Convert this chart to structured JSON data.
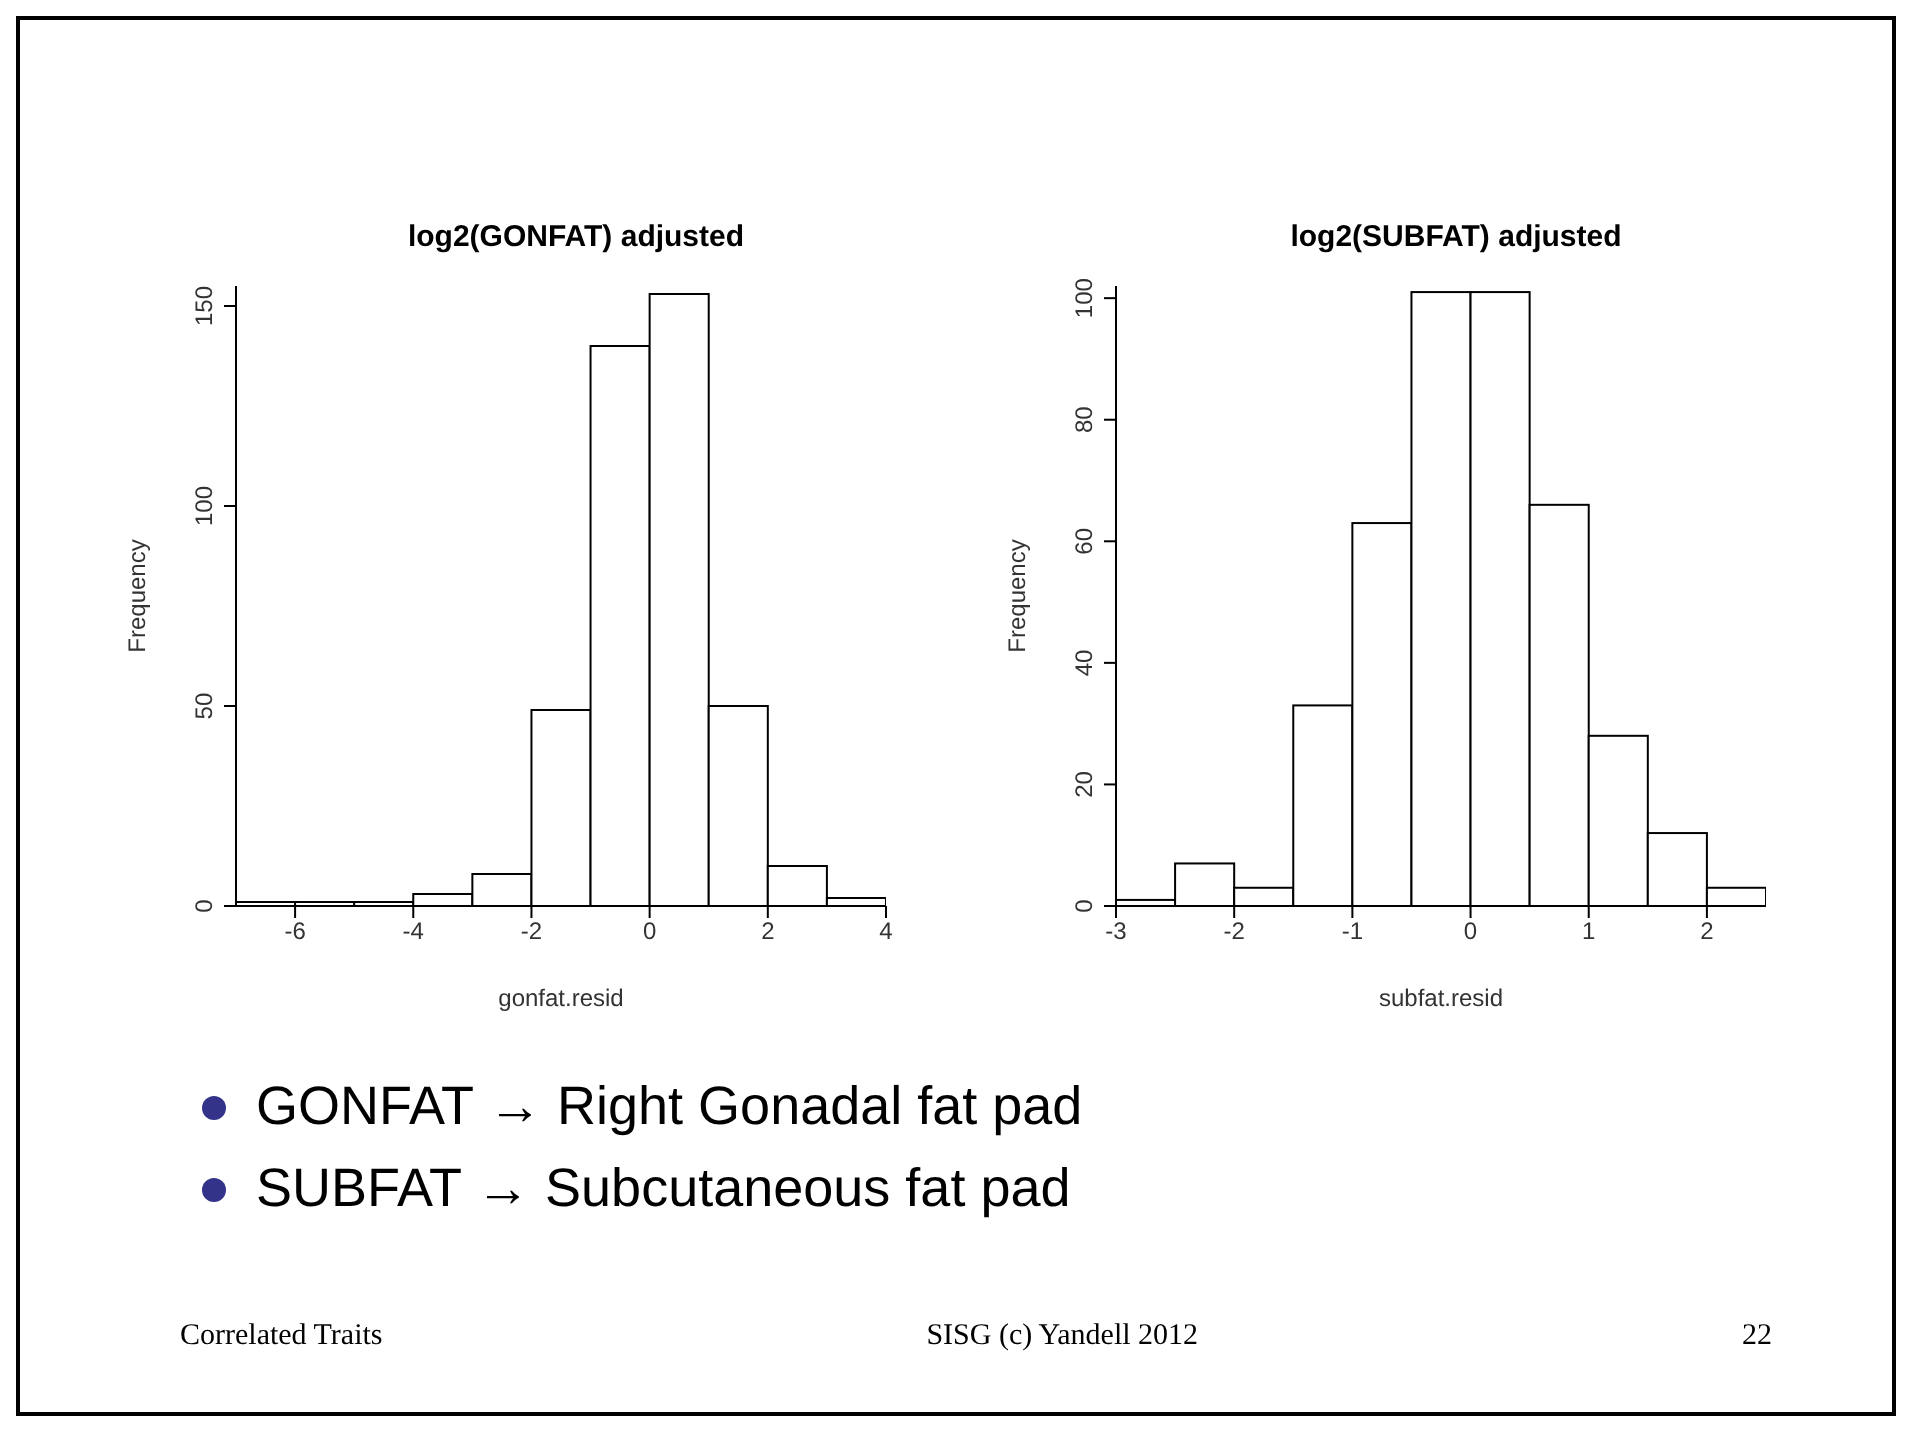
{
  "chart_data": [
    {
      "type": "histogram",
      "title": "log2(GONFAT) adjusted",
      "xlabel": "gonfat.resid",
      "ylabel": "Frequency",
      "color": "#ffffff",
      "bins": [
        -7,
        -6,
        -5,
        -4,
        -3,
        -2,
        -1,
        0,
        1,
        2,
        3,
        4
      ],
      "values": [
        1,
        1,
        1,
        3,
        8,
        49,
        140,
        153,
        50,
        10,
        2
      ],
      "xlim": [
        -7,
        4
      ],
      "xticks": [
        -6,
        -4,
        -2,
        0,
        2,
        4
      ],
      "ylim": [
        0,
        155
      ],
      "yticks": [
        0,
        50,
        100,
        150
      ]
    },
    {
      "type": "histogram",
      "title": "log2(SUBFAT) adjusted",
      "xlabel": "subfat.resid",
      "ylabel": "Frequency",
      "color": "#ffffff",
      "bins": [
        -3,
        -2.5,
        -2,
        -1.5,
        -1,
        -0.5,
        0,
        0.5,
        1,
        1.5,
        2,
        2.5
      ],
      "values": [
        1,
        7,
        3,
        33,
        63,
        101,
        101,
        66,
        28,
        12,
        3
      ],
      "xlim": [
        -3,
        2.5
      ],
      "xticks": [
        -3,
        -2,
        -1,
        0,
        1,
        2
      ],
      "ylim": [
        0,
        102
      ],
      "yticks": [
        0,
        20,
        40,
        60,
        80,
        100
      ],
      "annotations": [
        "GONFAT → Right Gonadal fat pad",
        "SUBFAT → Subcutaneous fat pad",
        "Correlated Traits",
        "SISG (c) Yandell 2012",
        "22"
      ]
    }
  ]
}
